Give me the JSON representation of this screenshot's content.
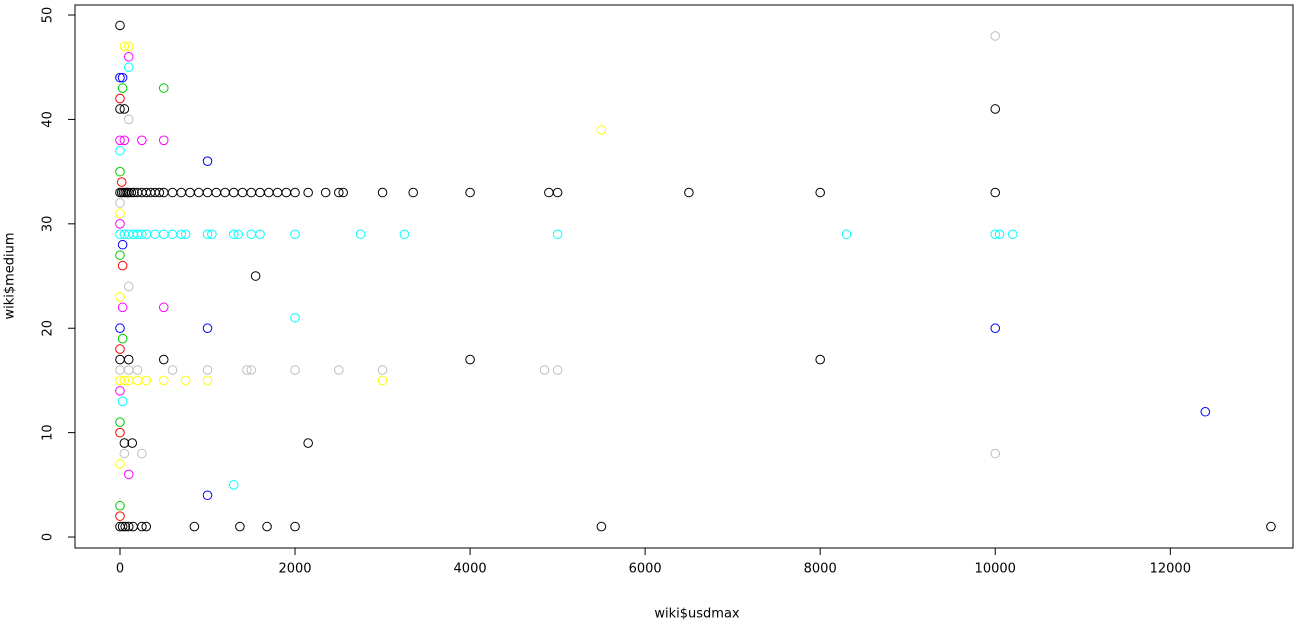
{
  "chart_data": {
    "type": "scatter",
    "x_label": "wiki$usdmax",
    "y_label": "wiki$medium",
    "xlim": [
      -514,
      13402
    ],
    "ylim": [
      -1.05,
      50.96
    ],
    "xticks": [
      0,
      2000,
      4000,
      6000,
      8000,
      10000,
      12000
    ],
    "yticks": [
      0,
      10,
      20,
      30,
      40,
      50
    ],
    "series": [
      {
        "color": "#000000",
        "x": [
          0,
          0,
          50,
          10000,
          0,
          20,
          40,
          60,
          80,
          100,
          130,
          160,
          200,
          250,
          300,
          350,
          400,
          450,
          500,
          600,
          700,
          800,
          900,
          1000,
          1100,
          1200,
          1300,
          1400,
          1500,
          1600,
          1700,
          1800,
          1900,
          2000,
          2150,
          2350,
          2500,
          2550,
          3000,
          3350,
          4000,
          4900,
          5000,
          6500,
          8000,
          10000,
          1550,
          0,
          100,
          500,
          4000,
          8000,
          50,
          140,
          2150,
          0,
          30,
          60,
          100,
          150,
          250,
          300,
          850,
          1370,
          1680,
          2000,
          5500,
          13150
        ],
        "y": [
          49,
          41,
          41,
          41,
          33,
          33,
          33,
          33,
          33,
          33,
          33,
          33,
          33,
          33,
          33,
          33,
          33,
          33,
          33,
          33,
          33,
          33,
          33,
          33,
          33,
          33,
          33,
          33,
          33,
          33,
          33,
          33,
          33,
          33,
          33,
          33,
          33,
          33,
          33,
          33,
          33,
          33,
          33,
          33,
          33,
          33,
          25,
          17,
          17,
          17,
          17,
          17,
          9,
          9,
          9,
          1,
          1,
          1,
          1,
          1,
          1,
          1,
          1,
          1,
          1,
          1,
          1,
          1
        ]
      },
      {
        "color": "#ff0000",
        "x": [
          0,
          20,
          30,
          0,
          0,
          0
        ],
        "y": [
          42,
          34,
          26,
          18,
          10,
          2
        ]
      },
      {
        "color": "#00cd00",
        "x": [
          30,
          500,
          0,
          0,
          30,
          0,
          0
        ],
        "y": [
          43,
          43,
          35,
          27,
          19,
          11,
          3
        ]
      },
      {
        "color": "#0000ff",
        "x": [
          0,
          30,
          1000,
          30,
          0,
          1000,
          10000,
          12400,
          1000
        ],
        "y": [
          44,
          44,
          36,
          28,
          20,
          20,
          20,
          12,
          4
        ]
      },
      {
        "color": "#00ffff",
        "x": [
          100,
          0,
          0,
          50,
          100,
          150,
          200,
          250,
          300,
          400,
          500,
          600,
          700,
          750,
          1000,
          1050,
          1300,
          1350,
          1500,
          1600,
          2000,
          2750,
          3250,
          5000,
          8300,
          10000,
          10050,
          10200,
          2000,
          30,
          1300
        ],
        "y": [
          45,
          37,
          29,
          29,
          29,
          29,
          29,
          29,
          29,
          29,
          29,
          29,
          29,
          29,
          29,
          29,
          29,
          29,
          29,
          29,
          29,
          29,
          29,
          29,
          29,
          29,
          29,
          29,
          21,
          13,
          5
        ]
      },
      {
        "color": "#ff00ff",
        "x": [
          100,
          0,
          50,
          250,
          500,
          0,
          30,
          500,
          0,
          100
        ],
        "y": [
          46,
          38,
          38,
          38,
          38,
          30,
          22,
          22,
          14,
          6
        ]
      },
      {
        "color": "#ffff00",
        "x": [
          50,
          100,
          5500,
          0,
          0,
          0,
          50,
          100,
          200,
          300,
          500,
          750,
          1000,
          3000,
          0
        ],
        "y": [
          47,
          47,
          39,
          31,
          23,
          15,
          15,
          15,
          15,
          15,
          15,
          15,
          15,
          15,
          7
        ]
      },
      {
        "color": "#bebebe",
        "x": [
          10000,
          100,
          0,
          100,
          0,
          100,
          200,
          600,
          1000,
          1450,
          1500,
          2000,
          2500,
          3000,
          4850,
          5000,
          50,
          250,
          10000
        ],
        "y": [
          48,
          40,
          32,
          24,
          16,
          16,
          16,
          16,
          16,
          16,
          16,
          16,
          16,
          16,
          16,
          16,
          8,
          8,
          8
        ]
      }
    ]
  }
}
